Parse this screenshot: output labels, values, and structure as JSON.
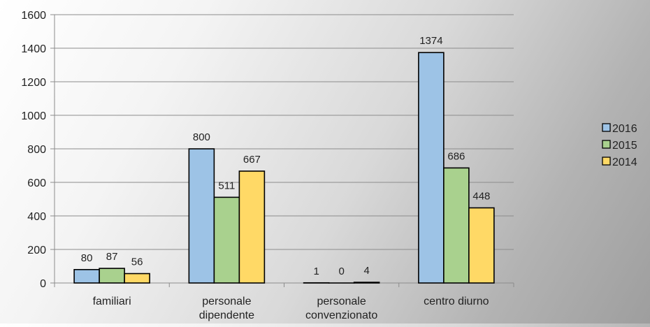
{
  "chart_data": {
    "type": "bar",
    "title": "",
    "xlabel": "",
    "ylabel": "",
    "categories": [
      [
        "familiari"
      ],
      [
        "personale",
        "dipendente"
      ],
      [
        "personale",
        "convenzionato"
      ],
      [
        "centro diurno"
      ]
    ],
    "series": [
      {
        "name": "2016",
        "color": "#9dc3e6",
        "values": [
          80,
          800,
          1,
          1374
        ]
      },
      {
        "name": "2015",
        "color": "#a9d18e",
        "values": [
          87,
          511,
          0,
          686
        ]
      },
      {
        "name": "2014",
        "color": "#ffd966",
        "values": [
          56,
          667,
          4,
          448
        ]
      }
    ],
    "ylim": [
      0,
      1600
    ],
    "yticks": [
      0,
      200,
      400,
      600,
      800,
      1000,
      1200,
      1400,
      1600
    ],
    "grid": true,
    "legend_position": "right",
    "bar_outline_color": "#000000",
    "gridline_color": "#8c8c8c"
  }
}
